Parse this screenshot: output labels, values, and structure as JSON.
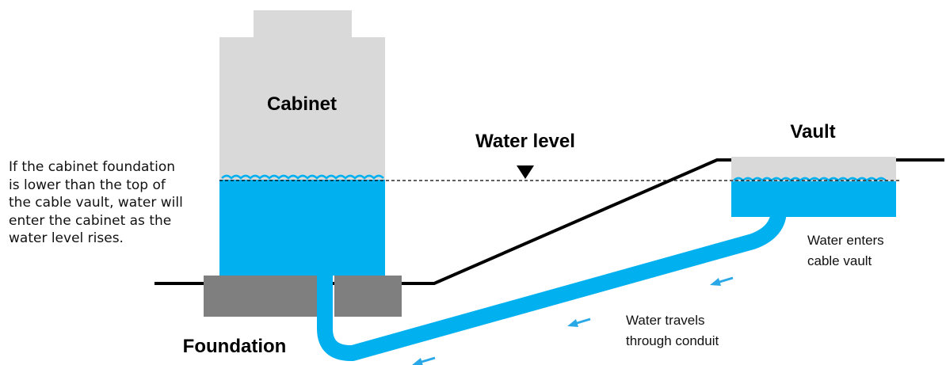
{
  "labels": {
    "cabinet": "Cabinet",
    "water_level": "Water level",
    "vault": "Vault",
    "foundation": "Foundation",
    "water_enters": [
      "Water enters",
      "cable vault"
    ],
    "water_travels": [
      "Water travels",
      "through conduit"
    ]
  },
  "note_lines": [
    "If the cabinet foundation",
    "is lower than the top of",
    "the cable vault, water will",
    "enter the cabinet as the",
    "water level rises."
  ],
  "colors": {
    "water": "#00b0ef",
    "cabinet": "#d9d9d9",
    "foundation": "#7f7f7f",
    "ground": "#000000",
    "arrow": "#29a8e8"
  }
}
